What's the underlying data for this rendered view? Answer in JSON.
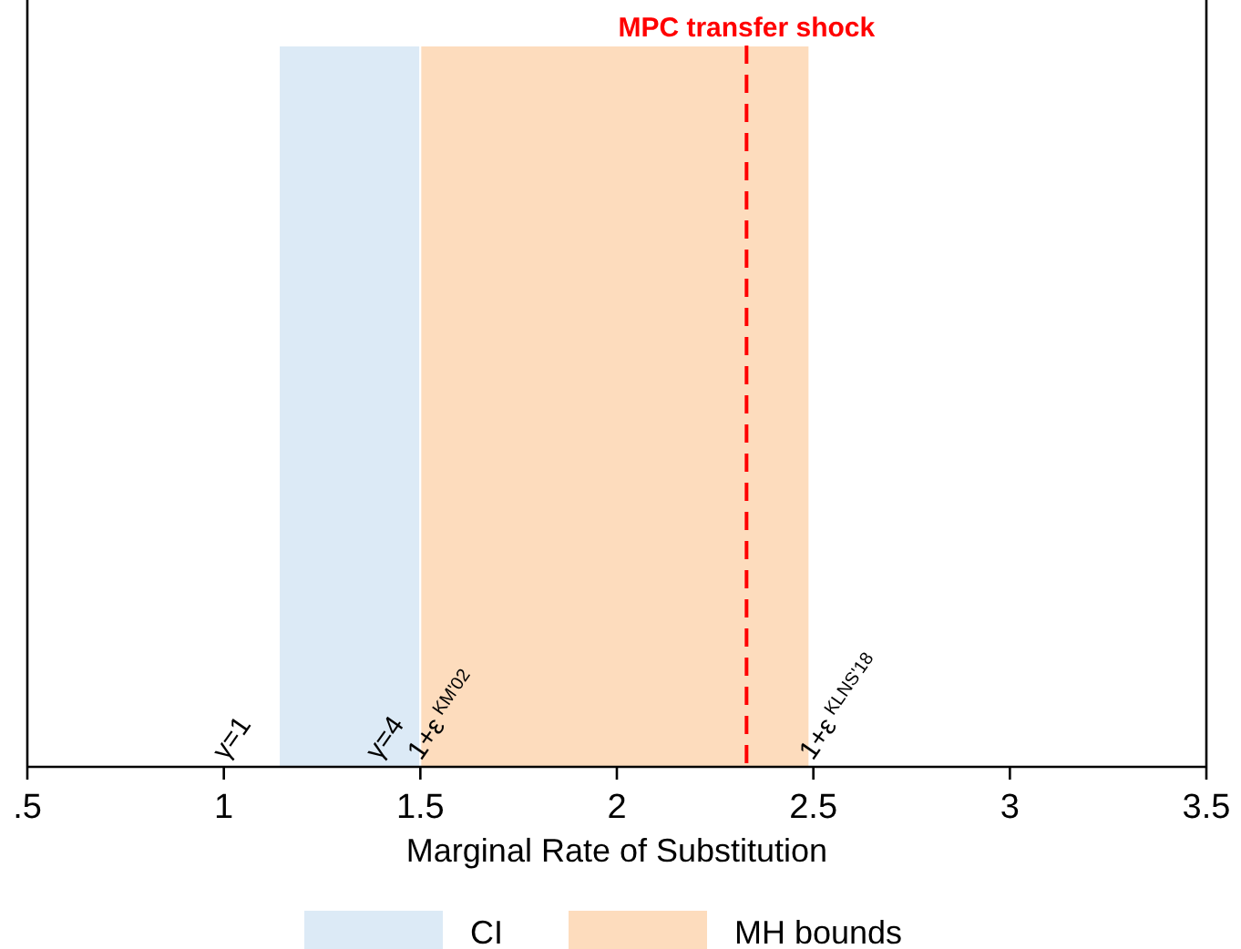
{
  "chart_data": {
    "type": "bar",
    "orientation": "horizontal",
    "xlabel": "Marginal Rate of Substitution",
    "categories": [
      null
    ],
    "series": [
      {
        "name": "CI",
        "color": "#dceaf6",
        "base": [
          1.14
        ],
        "values": [
          0.36
        ]
      },
      {
        "name": "MH bounds",
        "color": "#fddcbd",
        "base": [
          1.5
        ],
        "values": [
          0.99
        ]
      }
    ],
    "xlim": [
      0.5,
      3.5
    ],
    "xticks": [
      {
        "value": 0.5,
        "label": ".5"
      },
      1,
      1.5,
      2,
      2.5,
      3,
      3.5
    ],
    "tick_labels": "x",
    "ref_lines": [
      {
        "axis": "x",
        "value": 2.33,
        "label": "MPC transfer shock",
        "color": "#ff0000",
        "line_style": "dashed"
      }
    ],
    "annotations": [
      "γ=1",
      "γ=4",
      "1+ε$^{KM'02}$",
      "1+ε$^{KLNS'18}$"
    ],
    "legend": "bottom"
  }
}
